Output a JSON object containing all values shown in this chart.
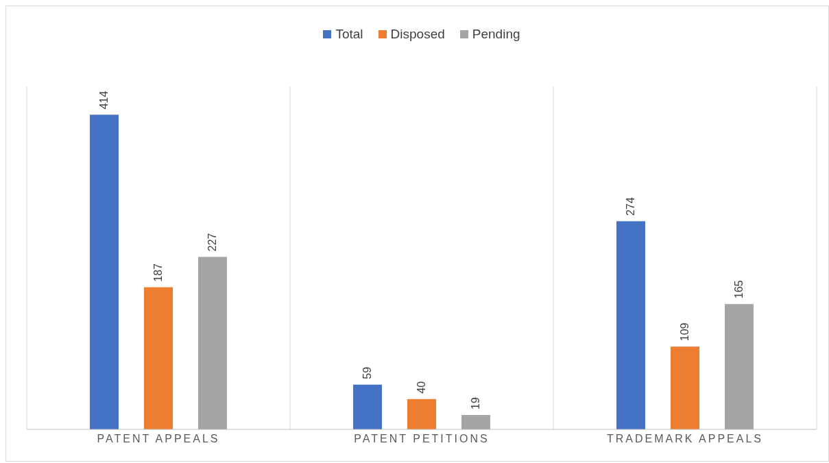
{
  "chart_data": {
    "type": "bar",
    "categories": [
      "PATENT APPEALS",
      "PATENT PETITIONS",
      "TRADEMARK APPEALS"
    ],
    "series": [
      {
        "name": "Total",
        "color": "#4472c4",
        "values": [
          414,
          59,
          274
        ]
      },
      {
        "name": "Disposed",
        "color": "#ed7d31",
        "values": [
          187,
          40,
          109
        ]
      },
      {
        "name": "Pending",
        "color": "#a5a5a5",
        "values": [
          227,
          19,
          165
        ]
      }
    ],
    "data_labels": true,
    "grid": "x",
    "legend": "top"
  }
}
